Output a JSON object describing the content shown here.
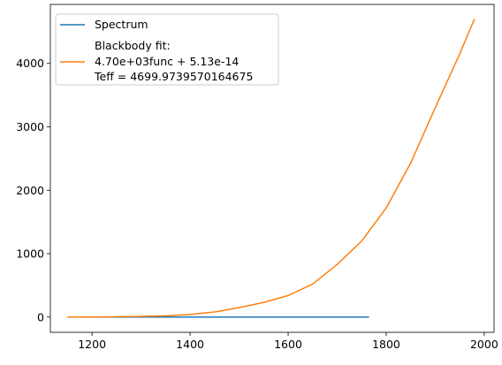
{
  "chart_data": {
    "type": "line",
    "xlim": [
      1115,
      2020
    ],
    "ylim": [
      -240,
      4930
    ],
    "x_ticks": [
      1200,
      1400,
      1600,
      1800,
      2000
    ],
    "y_ticks": [
      0,
      1000,
      2000,
      3000,
      4000
    ],
    "grid": false,
    "legend_placement": "top-left",
    "series": [
      {
        "name": "Spectrum",
        "color": "#1f77b4",
        "x": [
          1150,
          1765
        ],
        "y": [
          0,
          0
        ]
      },
      {
        "name_lines": [
          "Blackbody fit:",
          "4.70e+03func + 5.13e-14",
          "Teff = 4699.9739570164675"
        ],
        "color": "#ff7f0e",
        "x": [
          1150,
          1200,
          1250,
          1300,
          1350,
          1400,
          1450,
          1500,
          1550,
          1600,
          1650,
          1700,
          1750,
          1800,
          1850,
          1900,
          1950,
          1980
        ],
        "y": [
          0,
          2,
          5,
          10,
          20,
          42,
          80,
          150,
          230,
          340,
          520,
          830,
          1200,
          1720,
          2430,
          3300,
          4150,
          4700
        ]
      }
    ]
  }
}
